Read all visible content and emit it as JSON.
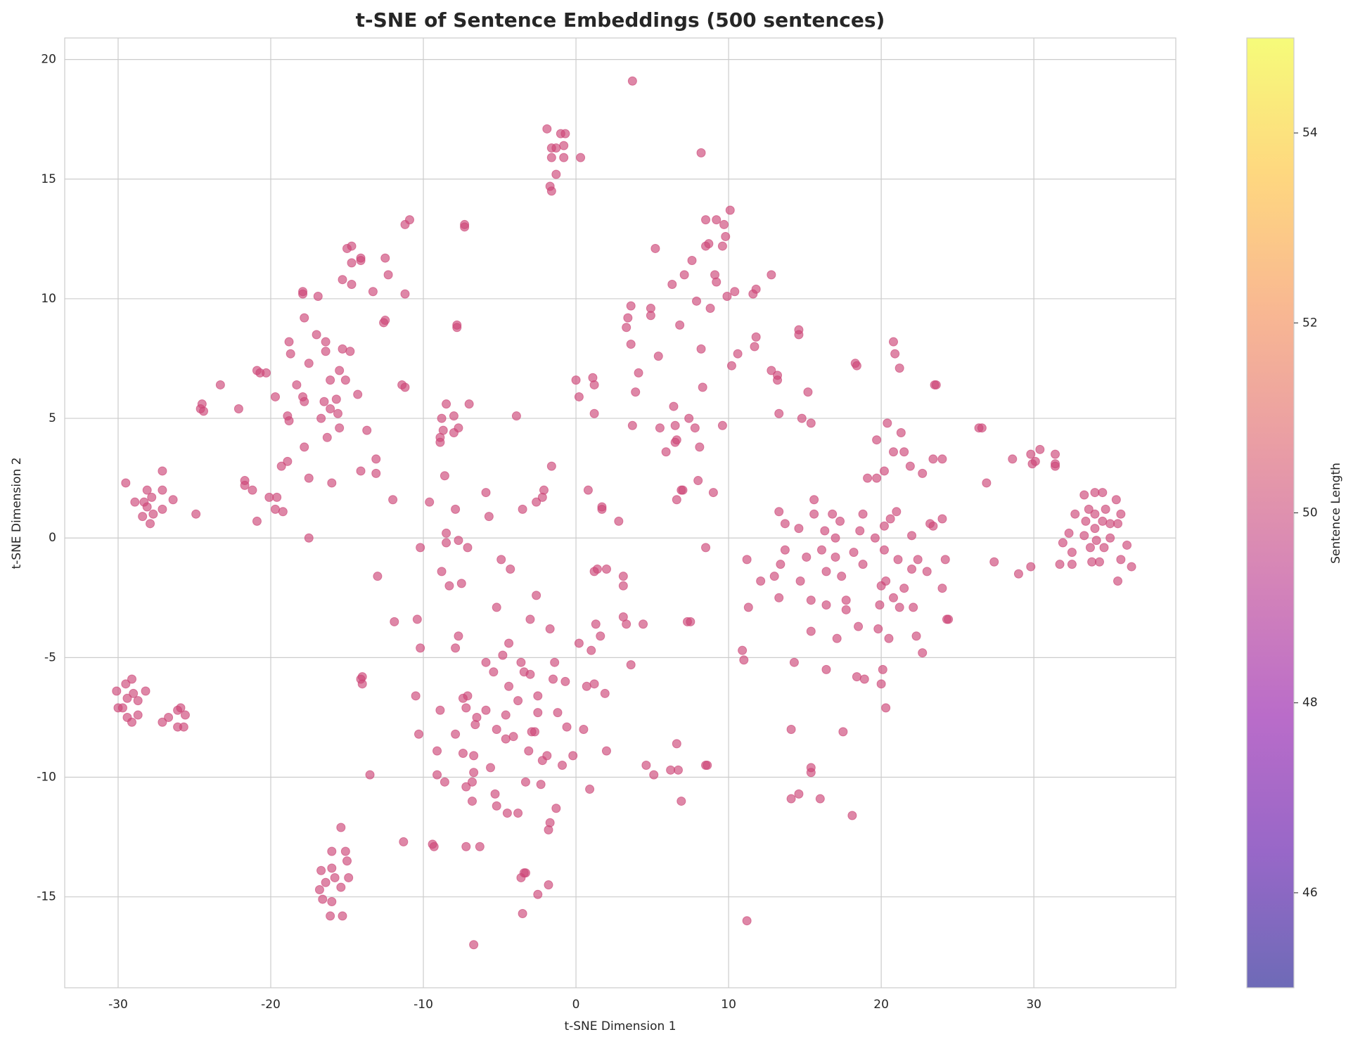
{
  "chart_data": {
    "type": "scatter",
    "title": "t-SNE of Sentence Embeddings (500 sentences)",
    "xlabel": "t-SNE Dimension 1",
    "ylabel": "t-SNE Dimension 2",
    "xlim": [
      -33.5,
      39.3
    ],
    "ylim": [
      -18.8,
      20.9
    ],
    "xticks": [
      -30,
      -20,
      -10,
      0,
      10,
      20,
      30
    ],
    "yticks": [
      -15,
      -10,
      -5,
      0,
      5,
      10,
      15,
      20
    ],
    "grid": true,
    "color": "#cc4778",
    "alpha": 0.65,
    "colorbar": {
      "label": "Sentence Length",
      "lim": [
        45,
        55
      ],
      "ticks": [
        46,
        48,
        50,
        52,
        54
      ],
      "colors": [
        "#0d0887",
        "#5302a3",
        "#8b0aa5",
        "#b83289",
        "#db5c68",
        "#f48849",
        "#febd2a",
        "#f0f921"
      ],
      "alpha": 0.6
    },
    "x": [
      -29.5,
      -28.9,
      -28.3,
      -28.1,
      -28.1,
      -27.8,
      -27.7,
      -27.9,
      -28.4,
      -27.1,
      -27.1,
      -27.1,
      -26.4,
      -24.9,
      -30.1,
      -30,
      -29.7,
      -29.5,
      -29.4,
      -29.1,
      -29,
      -28.7,
      -28.2,
      -29.4,
      -29.1,
      -28.7,
      -27.1,
      -26.7,
      -26.1,
      -25.9,
      -25.6,
      -26.1,
      -25.7,
      -15.4,
      -15.1,
      -16,
      -15,
      -16.7,
      -16,
      -16.8,
      -16.4,
      -15.8,
      -14.9,
      -15.4,
      -16.6,
      -16,
      -16.1,
      -15.3,
      -24.5,
      -24.6,
      -24.4,
      -23.3,
      -22.1,
      -21.7,
      -21.7,
      -21.2,
      -20.9,
      -20.9,
      -20.7,
      -20.3,
      -20.1,
      -19.7,
      -19.6,
      -19.7,
      -19.2,
      -19.3,
      -18.9,
      -18.9,
      -18.8,
      -18.8,
      -18.7,
      -18.3,
      -17.9,
      -17.9,
      -17.8,
      -17.9,
      -17.8,
      -17.8,
      -17.5,
      -17.5,
      -17.5,
      -17,
      -16.9,
      -16.7,
      -16.5,
      -16.4,
      -16.4,
      -16.3,
      -16.1,
      -16.1,
      -16,
      -15.7,
      -15.6,
      -15.5,
      -15.5,
      -15.3,
      -15.3,
      -15.1,
      -15,
      -14.7,
      -14.7,
      -14.7,
      -14.8,
      -14.3,
      -14.1,
      -14.1,
      -14.1,
      -13.7,
      -13.3,
      -13.1,
      -13.1,
      -12.6,
      -12.5,
      -12.5,
      -12.3,
      -12,
      -11.9,
      -11.4,
      -11.2,
      -11.2,
      -11.2,
      -10.9,
      -13,
      -14,
      -14.1,
      -14,
      -13.5,
      -11.3,
      -10.4,
      -10.2,
      -10.2,
      -10.5,
      -10.3,
      -9.6,
      -9.4,
      -9.3,
      -9.1,
      -9.1,
      -8.9,
      -8.9,
      -8.9,
      -8.8,
      -8.7,
      -8.8,
      -8.6,
      -8.5,
      -8.5,
      -8.5,
      -8.6,
      -8.3,
      -8,
      -8,
      -7.9,
      -7.9,
      -7.9,
      -7.8,
      -7.8,
      -7.7,
      -7.7,
      -7.7,
      -7.5,
      -7.4,
      -7.4,
      -7.3,
      -7.3,
      -7.2,
      -7.2,
      -7.2,
      -7.1,
      -7.1,
      -7,
      -6.8,
      -6.8,
      -6.7,
      -6.7,
      -6.6,
      -6.5,
      -6.7,
      -6.3,
      -5.9,
      -5.9,
      -5.9,
      -5.7,
      -5.6,
      -5.4,
      -5.3,
      -5.2,
      -5.2,
      -5.2,
      -4.9,
      -4.8,
      -4.6,
      -4.6,
      -4.5,
      -4.4,
      -4.4,
      -4.3,
      -4.1,
      -3.9,
      -3.8,
      -3.8,
      -3.6,
      -3.6,
      -3.5,
      -3.5,
      -3.4,
      -3.3,
      -3.3,
      -3.4,
      -3.1,
      -3,
      -3,
      -2.9,
      -2.7,
      -2.6,
      -2.6,
      -2.5,
      -2.5,
      -2.5,
      -2.3,
      -2.2,
      -2.2,
      -2.1,
      -1.9,
      -1.8,
      -1.8,
      -1.7,
      -1.7,
      -1.6,
      -1.5,
      -1.4,
      -1.3,
      -1.2,
      -0.9,
      -0.7,
      -0.6,
      -0.2,
      0.2,
      0.5,
      0.7,
      0.9,
      1,
      1.2,
      1.3,
      1.2,
      1.4,
      1.6,
      1.7,
      1.7,
      1.9,
      2,
      2,
      2.8,
      3.1,
      3.1,
      3.1,
      3.3,
      3.6,
      4.4,
      4.6,
      5.1,
      6.2,
      6.6,
      6.7,
      6.9,
      7.3,
      7.5,
      8.5,
      8.6,
      0.8,
      0,
      0.2,
      1.1,
      1.2,
      1.2,
      -1.9,
      -1.6,
      -1.3,
      -1,
      -0.7,
      -0.8,
      -0.8,
      -1.6,
      -1.3,
      -1.7,
      -1.6,
      0.3,
      3.7,
      8.2,
      3.3,
      3.4,
      3.6,
      3.6,
      3.7,
      3.9,
      4.1,
      4.9,
      4.9,
      5.2,
      5.4,
      5.5,
      5.9,
      6.3,
      6.4,
      6.5,
      6.5,
      6.6,
      6.6,
      6.8,
      6.9,
      7,
      7.1,
      7.4,
      7.6,
      7.8,
      7.9,
      8,
      8.1,
      8.2,
      8.3,
      8.5,
      8.5,
      8.5,
      8.7,
      8.8,
      9,
      9.1,
      9.2,
      9.2,
      9.6,
      9.6,
      9.7,
      9.8,
      9.9,
      10.1,
      10.2,
      10.4,
      10.6,
      10.9,
      11,
      11.2,
      11.3,
      11.2,
      11.6,
      11.7,
      11.8,
      11.8,
      12.1,
      12.8,
      12.8,
      13,
      13.2,
      13.2,
      13.3,
      13.3,
      13.4,
      13.3,
      13.7,
      13.7,
      14.1,
      14.1,
      14.3,
      14.6,
      14.6,
      14.6,
      14.6,
      14.7,
      14.8,
      15.1,
      15.2,
      15.4,
      15.4,
      15.4,
      15.4,
      15.4,
      15.6,
      15.6,
      16,
      16.1,
      16.3,
      16.4,
      16.4,
      16.4,
      16.8,
      17,
      17,
      17.1,
      17.3,
      17.4,
      17.5,
      17.7,
      17.7,
      18.1,
      18.2,
      18.3,
      18.4,
      18.4,
      18.5,
      18.6,
      18.8,
      18.8,
      18.9,
      19.1,
      19.6,
      19.7,
      19.7,
      19.9,
      19.8,
      20,
      20.1,
      20,
      20.2,
      20.2,
      20.2,
      20.3,
      20.3,
      20.4,
      20.5,
      20.6,
      20.8,
      20.9,
      20.8,
      20.8,
      21,
      21.1,
      21.2,
      21.2,
      21.3,
      21.5,
      21.5,
      21.9,
      22,
      22,
      22.1,
      22.3,
      22.4,
      22.7,
      22.7,
      23,
      23.2,
      23.4,
      23.4,
      23.6,
      23.5,
      24,
      24,
      24,
      24.2,
      24.3,
      24.4,
      26.4,
      26.6,
      26.9,
      27.4,
      28.6,
      29,
      29.8,
      29.8,
      29.9,
      30.1,
      30.4,
      31.4,
      31.4,
      31.4,
      31.7,
      31.9,
      32.3,
      32.5,
      32.5,
      32.7,
      33.3,
      33.3,
      33.4,
      33.6,
      33.7,
      33.8,
      34,
      34,
      34,
      34.1,
      34.3,
      34.5,
      34.5,
      34.6,
      34.7,
      35,
      35,
      35.4,
      35.5,
      35.5,
      35.7,
      35.7,
      36.1,
      36.4
    ],
    "values": [
      2.3,
      1.5,
      1.5,
      2,
      1.3,
      1.7,
      1,
      0.6,
      0.9,
      2.8,
      2,
      1.2,
      1.6,
      1,
      -6.4,
      -7.1,
      -7.1,
      -6.1,
      -6.7,
      -5.9,
      -6.5,
      -6.8,
      -6.4,
      -7.5,
      -7.7,
      -7.4,
      -7.7,
      -7.5,
      -7.2,
      -7.1,
      -7.4,
      -7.9,
      -7.9,
      -12.1,
      -13.1,
      -13.1,
      -13.5,
      -13.9,
      -13.8,
      -14.7,
      -14.4,
      -14.2,
      -14.2,
      -14.6,
      -15.1,
      -15.2,
      -15.8,
      -15.8,
      5.6,
      5.4,
      5.3,
      6.4,
      5.4,
      2.4,
      2.2,
      2,
      0.7,
      7,
      6.9,
      6.9,
      1.7,
      5.9,
      1.7,
      1.2,
      1.1,
      3,
      3.2,
      5.1,
      4.9,
      8.2,
      7.7,
      6.4,
      10.3,
      10.2,
      9.2,
      5.9,
      5.7,
      3.8,
      2.5,
      7.3,
      0,
      8.5,
      10.1,
      5,
      5.7,
      8.2,
      7.8,
      4.2,
      6.6,
      5.4,
      2.3,
      5.8,
      5.2,
      4.6,
      7,
      7.9,
      10.8,
      6.6,
      12.1,
      12.2,
      11.5,
      10.6,
      7.8,
      6,
      11.7,
      11.6,
      2.8,
      4.5,
      10.3,
      3.3,
      2.7,
      9,
      9.1,
      11.7,
      11,
      1.6,
      -3.5,
      6.4,
      6.3,
      10.2,
      13.1,
      13.3,
      -1.6,
      -5.8,
      -5.9,
      -6.1,
      -9.9,
      -12.7,
      -3.4,
      -4.6,
      -0.4,
      -6.6,
      -8.2,
      1.5,
      -12.8,
      -12.9,
      -9.9,
      -8.9,
      -7.2,
      4.2,
      4,
      5,
      4.5,
      -1.4,
      2.6,
      5.6,
      0.2,
      -0.2,
      -10.2,
      -2,
      5.1,
      4.4,
      1.2,
      -4.6,
      -8.2,
      8.8,
      8.9,
      4.6,
      -0.1,
      -4.1,
      -1.9,
      -9,
      -6.7,
      13.1,
      13,
      -12.9,
      -10.4,
      -7.1,
      -6.6,
      -0.4,
      5.6,
      -10.2,
      -11,
      -9.1,
      -9.8,
      -7.8,
      -7.5,
      -17,
      -12.9,
      -7.2,
      -5.2,
      1.9,
      0.9,
      -9.6,
      -5.6,
      -10.7,
      -11.2,
      -2.9,
      -8,
      -0.9,
      -4.9,
      -7.4,
      -8.4,
      -11.5,
      -4.4,
      -6.2,
      -1.3,
      -8.3,
      5.1,
      -6.8,
      -11.5,
      -5.2,
      -14.2,
      -15.7,
      1.2,
      -14,
      -14,
      -10.2,
      -5.6,
      -8.9,
      -3.4,
      -5.7,
      -8.1,
      -8.1,
      -2.4,
      1.5,
      -7.3,
      -6.6,
      -14.9,
      -10.3,
      1.7,
      -9.3,
      2,
      -9.1,
      -14.5,
      -12.2,
      -11.9,
      -3.8,
      3,
      -5.9,
      -5.2,
      -11.3,
      -7.3,
      -9.5,
      -6,
      -7.9,
      -9.1,
      -4.4,
      -8,
      -6.2,
      -10.5,
      -4.7,
      -6.1,
      -3.6,
      -1.4,
      -1.3,
      -4.1,
      1.2,
      1.3,
      -6.5,
      -1.3,
      -8.9,
      0.7,
      -1.6,
      -2,
      -3.3,
      -3.6,
      -5.3,
      -3.6,
      -9.5,
      -9.9,
      -9.7,
      -8.6,
      -9.7,
      -11,
      -3.5,
      -3.5,
      -9.5,
      -9.5,
      2,
      6.6,
      5.9,
      6.7,
      6.4,
      5.2,
      17.1,
      16.3,
      16.3,
      16.9,
      16.9,
      16.4,
      15.9,
      15.9,
      15.2,
      14.7,
      14.5,
      15.9,
      19.1,
      16.1,
      8.8,
      9.2,
      9.7,
      8.1,
      4.7,
      6.1,
      6.9,
      9.6,
      9.3,
      12.1,
      7.6,
      4.6,
      3.6,
      10.6,
      5.5,
      4.7,
      4,
      4.1,
      1.6,
      8.9,
      2,
      2,
      11,
      5,
      11.6,
      4.6,
      9.9,
      2.4,
      3.8,
      7.9,
      6.3,
      13.3,
      12.2,
      -0.4,
      12.3,
      9.6,
      1.9,
      11,
      10.7,
      13.3,
      4.7,
      12.2,
      13.1,
      12.6,
      10.1,
      13.7,
      7.2,
      10.3,
      7.7,
      -4.7,
      -5.1,
      -0.9,
      -2.9,
      -16,
      10.2,
      8,
      10.4,
      8.4,
      -1.8,
      11,
      7,
      -1.6,
      6.8,
      6.6,
      5.2,
      1.1,
      -1.1,
      -2.5,
      0.6,
      -0.5,
      -8,
      -10.9,
      -5.2,
      8.7,
      8.5,
      0.4,
      -10.7,
      -1.8,
      5,
      -0.8,
      6.1,
      4.8,
      -2.6,
      -3.9,
      -9.6,
      -9.8,
      1.6,
      1,
      -10.9,
      -0.5,
      0.3,
      -2.8,
      -1.4,
      -5.5,
      1,
      0,
      -0.8,
      -4.2,
      0.7,
      -1.6,
      -8.1,
      -2.6,
      -3,
      -11.6,
      -0.6,
      7.3,
      7.2,
      -5.8,
      -3.7,
      0.3,
      1,
      -1.1,
      -5.9,
      2.5,
      0,
      4.1,
      2.5,
      -2.8,
      -3.8,
      -2,
      -5.5,
      -6.1,
      2.8,
      0.5,
      -0.5,
      -1.8,
      -7.1,
      4.8,
      -4.2,
      0.8,
      8.2,
      7.7,
      3.6,
      -2.5,
      1.1,
      -0.9,
      7.1,
      -2.9,
      4.4,
      3.6,
      -2.1,
      3,
      0.1,
      -1.3,
      -2.9,
      -4.1,
      -0.9,
      2.7,
      -4.8,
      -1.4,
      0.6,
      0.5,
      3.3,
      6.4,
      6.4,
      3.3,
      0.8,
      -2.1,
      -0.9,
      -3.4,
      -3.4,
      4.6,
      4.6,
      2.3,
      -1,
      3.3,
      -1.5,
      3.5,
      -1.2,
      3.1,
      3.2,
      3.7,
      3.5,
      3.1,
      3,
      -1.1,
      -0.2,
      0.2,
      -0.6,
      -1.1,
      1,
      1.8,
      0.1,
      0.7,
      1.2,
      -0.4,
      -1,
      1.9,
      1,
      0.4,
      -0.1,
      -1,
      1.9,
      0.7,
      -0.4,
      1.2,
      0.6,
      0,
      1.6,
      0.6,
      -1.8,
      1,
      -0.9,
      -0.3,
      -1.2
    ]
  }
}
